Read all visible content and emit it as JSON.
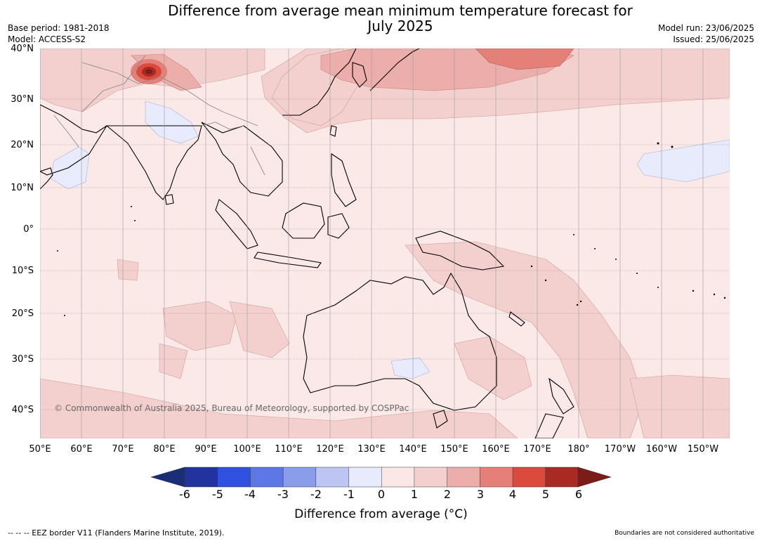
{
  "title": "Difference from average mean minimum temperature forecast for\nJuly 2025",
  "meta_left": {
    "base_period": "Base period: 1981-2018",
    "model": "Model: ACCESS-S2"
  },
  "meta_right": {
    "model_run": "Model run: 23/06/2025",
    "issued": "Issued: 25/06/2025"
  },
  "map": {
    "lat_labels": [
      "40°N",
      "30°N",
      "20°N",
      "10°N",
      "0°",
      "10°S",
      "20°S",
      "30°S",
      "40°S"
    ],
    "lon_labels": [
      "50°E",
      "60°E",
      "70°E",
      "80°E",
      "90°E",
      "100°E",
      "110°E",
      "120°E",
      "130°E",
      "140°E",
      "150°E",
      "160°E",
      "170°E",
      "180°",
      "170°W",
      "160°W",
      "150°W"
    ],
    "copyright": "© Commonwealth of Australia 2025, Bureau of Meteorology, supported by COSPPac"
  },
  "colorbar": {
    "ticks": [
      "-6",
      "-5",
      "-4",
      "-3",
      "-2",
      "-1",
      "0",
      "1",
      "2",
      "3",
      "4",
      "5",
      "6"
    ],
    "colors": [
      "#2233a0",
      "#3050e0",
      "#5c76e6",
      "#8a9de9",
      "#bdc6f3",
      "#e8ebfb",
      "#fbe7e6",
      "#f3d0cd",
      "#ecaeaa",
      "#e58078",
      "#da4a3d",
      "#a92a22"
    ],
    "underflow_color": "#1a2e78",
    "overflow_color": "#7a1c18",
    "label": "Difference from average (°C)"
  },
  "footer": {
    "eez": "--  --  -- EEZ border V11 (Flanders Marine Institute, 2019).",
    "boundaries": "Boundaries are not considered authoritative"
  }
}
